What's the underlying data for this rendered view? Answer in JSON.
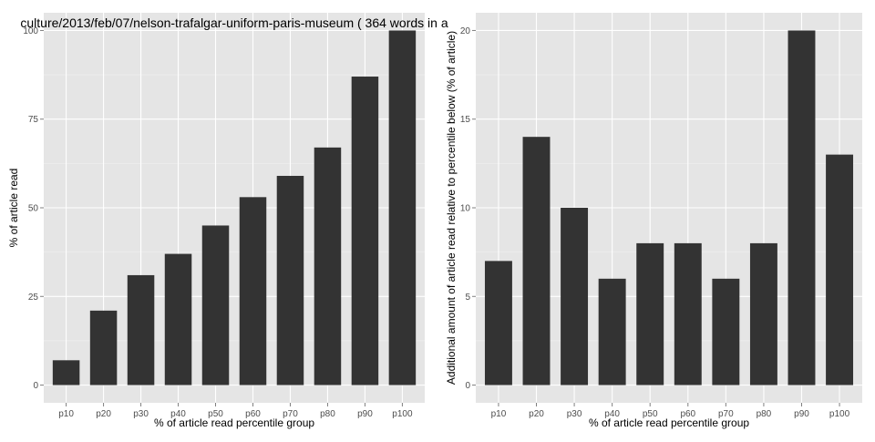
{
  "title": "culture/2013/feb/07/nelson-trafalgar-uniform-paris-museum ( 364 words in a",
  "colors": {
    "panel": "#e5e5e5",
    "grid_major": "#ffffff",
    "grid_minor": "#f2f2f2",
    "bar": "#333333"
  },
  "chart_data": [
    {
      "type": "bar",
      "title": "culture/2013/feb/07/nelson-trafalgar-uniform-paris-museum ( 364 words in a",
      "xlabel": "% of article read percentile group",
      "ylabel": "% of article read",
      "categories": [
        "p10",
        "p20",
        "p30",
        "p40",
        "p50",
        "p60",
        "p70",
        "p80",
        "p90",
        "p100"
      ],
      "values": [
        7,
        21,
        31,
        37,
        45,
        53,
        59,
        67,
        87,
        100
      ],
      "ylim": [
        -5,
        105
      ],
      "yticks": [
        0,
        25,
        50,
        75,
        100
      ],
      "grid": true
    },
    {
      "type": "bar",
      "title": "",
      "xlabel": "% of article read percentile group",
      "ylabel": "Additional amount of article read relative to percentile below (% of article)",
      "categories": [
        "p10",
        "p20",
        "p30",
        "p40",
        "p50",
        "p60",
        "p70",
        "p80",
        "p90",
        "p100"
      ],
      "values": [
        7,
        14,
        10,
        6,
        8,
        8,
        6,
        8,
        20,
        13
      ],
      "ylim": [
        -1,
        21
      ],
      "yticks": [
        0,
        5,
        10,
        15,
        20
      ],
      "grid": true
    }
  ]
}
